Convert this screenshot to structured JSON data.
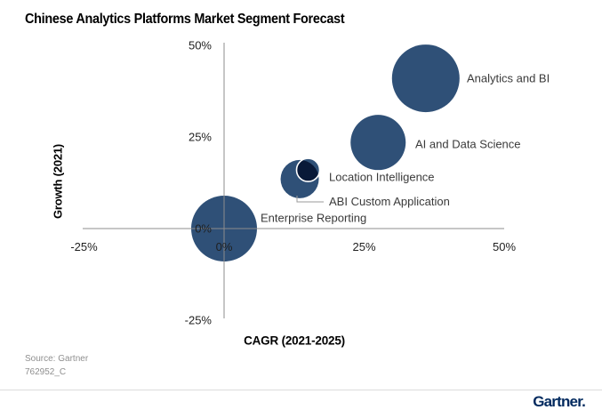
{
  "title": "Chinese Analytics Platforms Market Segment Forecast",
  "footer": {
    "source_line1": "Source: Gartner",
    "source_line2": "762952_C",
    "logo_text": "Gartner."
  },
  "colors": {
    "bubble": "#2F5077",
    "bubble_overlap_ring": "#FFFFFF",
    "axis": "#8C8C8C",
    "tick_text": "#1F1F1F",
    "label_text": "#3A3A3A",
    "leader_line": "#9A9A9A",
    "logo": "#00295E"
  },
  "chart_data": {
    "type": "scatter",
    "subtype": "bubble",
    "title": "Chinese Analytics Platforms Market Segment Forecast",
    "xlabel": "CAGR (2021-2025)",
    "ylabel": "Growth (2021)",
    "xlim": [
      -25,
      50
    ],
    "ylim": [
      -25,
      50
    ],
    "xticks": {
      "values": [
        -25,
        0,
        25,
        50
      ],
      "labels": [
        "-25%",
        "0%",
        "25%",
        "50%"
      ]
    },
    "yticks": {
      "values": [
        -25,
        0,
        25,
        50
      ],
      "labels": [
        "-25%",
        "0%",
        "25%",
        "50%"
      ]
    },
    "grid": false,
    "legend": "none",
    "units": "percent",
    "series": [
      {
        "name": "Enterprise Reporting",
        "x": 0,
        "y": 0,
        "radius_px": 37
      },
      {
        "name": "ABI Custom Application",
        "x": 13.5,
        "y": 13.5,
        "radius_px": 21.5
      },
      {
        "name": "AI and Data Science",
        "x": 27.5,
        "y": 23.5,
        "radius_px": 31
      },
      {
        "name": "Analytics and BI",
        "x": 36,
        "y": 41,
        "radius_px": 38
      },
      {
        "name": "Location Intelligence",
        "x": 15,
        "y": 16,
        "radius_px": 13,
        "overlap_highlight": true
      }
    ]
  }
}
